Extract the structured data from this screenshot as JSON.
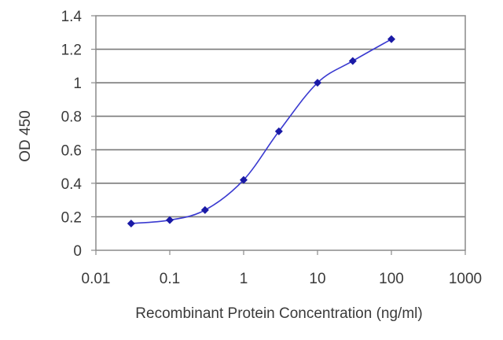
{
  "chart_data": {
    "type": "line",
    "title": "",
    "xlabel": "Recombinant Protein Concentration (ng/ml)",
    "ylabel": "OD 450",
    "xscale": "log",
    "xlim": [
      0.01,
      1000
    ],
    "ylim": [
      0,
      1.4
    ],
    "grid": "horizontal",
    "legend": "none",
    "x_ticks": [
      {
        "value": 0.01,
        "label": "0.01"
      },
      {
        "value": 0.1,
        "label": "0.1"
      },
      {
        "value": 1,
        "label": "1"
      },
      {
        "value": 10,
        "label": "10"
      },
      {
        "value": 100,
        "label": "100"
      },
      {
        "value": 1000,
        "label": "1000"
      }
    ],
    "y_ticks": [
      {
        "value": 0,
        "label": "0"
      },
      {
        "value": 0.2,
        "label": "0.2"
      },
      {
        "value": 0.4,
        "label": "0.4"
      },
      {
        "value": 0.6,
        "label": "0.6"
      },
      {
        "value": 0.8,
        "label": "0.8"
      },
      {
        "value": 1,
        "label": "1"
      },
      {
        "value": 1.2,
        "label": "1.2"
      },
      {
        "value": 1.4,
        "label": "1.4"
      }
    ],
    "series": [
      {
        "x": [
          0.03,
          0.1,
          0.3,
          1,
          3,
          10,
          30,
          100
        ],
        "y": [
          0.16,
          0.18,
          0.24,
          0.42,
          0.71,
          1.0,
          1.13,
          1.26
        ],
        "color": "#1a1aa6",
        "line_color": "#3a3ad0"
      }
    ],
    "colors": {
      "frame": "#8a8a8a",
      "grid": "#7a7a7a",
      "text": "#3a3a3a"
    }
  }
}
